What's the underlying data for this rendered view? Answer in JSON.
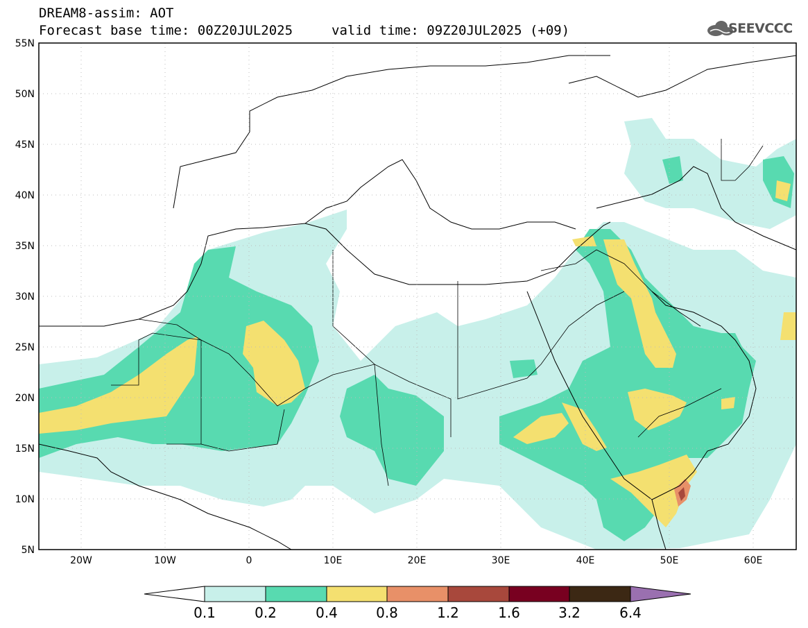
{
  "header": {
    "title": "DREAM8-assim: AOT",
    "base_time": "Forecast base time: 00Z20JUL2025",
    "valid_time": "valid time: 09Z20JUL2025 (+09)",
    "logo_text": "SEEVCCC"
  },
  "map": {
    "lon_range": [
      -25,
      65
    ],
    "lat_range": [
      5,
      55
    ],
    "lat_ticks": [
      "55N",
      "50N",
      "45N",
      "40N",
      "35N",
      "30N",
      "25N",
      "20N",
      "15N",
      "10N",
      "5N"
    ],
    "lon_ticks": [
      "20W",
      "10W",
      "0",
      "10E",
      "20E",
      "30E",
      "40E",
      "50E",
      "60E"
    ],
    "background": "#ffffff",
    "border_color": "#000000"
  },
  "legend": {
    "labels": [
      "0.1",
      "0.2",
      "0.4",
      "0.8",
      "1.2",
      "1.6",
      "3.2",
      "6.4"
    ],
    "colors": [
      "#ffffff",
      "#c8f0ea",
      "#58dab0",
      "#f4e070",
      "#e89068",
      "#a8483c",
      "#780020",
      "#3c2814",
      "#9a70b0"
    ]
  }
}
